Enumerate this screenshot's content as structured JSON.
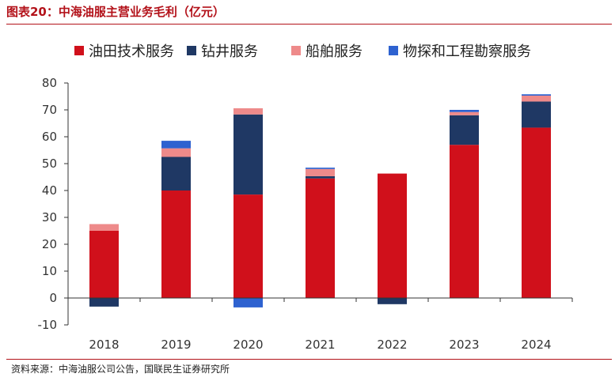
{
  "header": {
    "title": "图表20：中海油服主营业务毛利（亿元）"
  },
  "footer": {
    "source": "资料来源：中海油服公司公告，国联民生证券研究所"
  },
  "colors": {
    "series": [
      "#d0101b",
      "#1f3864",
      "#ee8a8a",
      "#2e62d0"
    ],
    "axis": "#333333",
    "rule": "#b3121a"
  },
  "chart_data": {
    "type": "bar",
    "stacked": true,
    "title": "",
    "xlabel": "",
    "ylabel": "",
    "categories": [
      "2018",
      "2019",
      "2020",
      "2021",
      "2022",
      "2023",
      "2024"
    ],
    "ylim": [
      -10,
      80
    ],
    "yticks": [
      -10,
      0,
      10,
      20,
      30,
      40,
      50,
      60,
      70,
      80
    ],
    "grid": false,
    "legend_position": "top",
    "series": [
      {
        "name": "油田技术服务",
        "values": [
          25,
          40,
          38.5,
          44.5,
          46.3,
          57,
          63.4
        ]
      },
      {
        "name": "钻井服务",
        "values": [
          -3.2,
          12.5,
          29.8,
          0.8,
          -2.3,
          11,
          9.7
        ]
      },
      {
        "name": "船舶服务",
        "values": [
          2.5,
          3.2,
          2.3,
          2.7,
          0,
          1.2,
          2.2
        ]
      },
      {
        "name": "物探和工程勘察服务",
        "values": [
          0,
          2.8,
          -3.5,
          0.5,
          0,
          0.8,
          0.5
        ]
      }
    ]
  }
}
